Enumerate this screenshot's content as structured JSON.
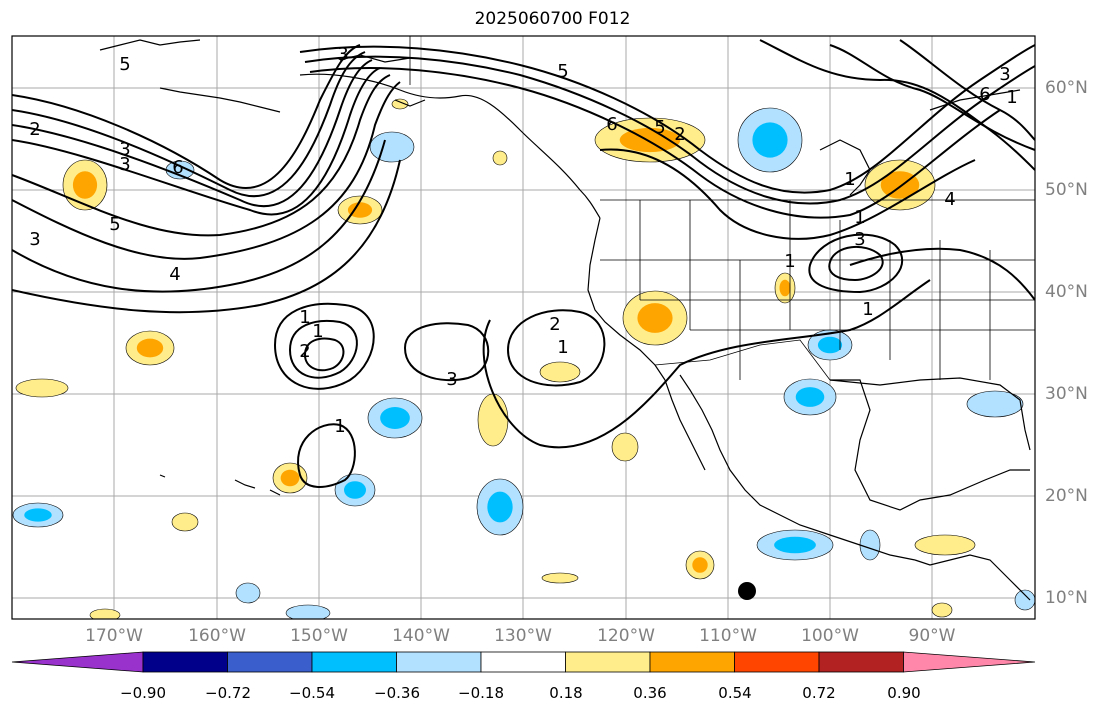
{
  "title": "2025060700 F012",
  "lon_labels": [
    "170°W",
    "160°W",
    "150°W",
    "140°W",
    "130°W",
    "120°W",
    "110°W",
    "100°W",
    "90°W"
  ],
  "lat_labels": [
    "60°N",
    "50°N",
    "40°N",
    "30°N",
    "20°N",
    "10°N"
  ],
  "colorbar": {
    "colors": [
      "#9932cc",
      "#00008b",
      "#3a5fcd",
      "#00bfff",
      "#b2e0ff",
      "#ffffff",
      "#ffec8b",
      "#ffa500",
      "#ff4500",
      "#b22222",
      "#ff88aa"
    ],
    "tick_labels": [
      "−0.90",
      "−0.72",
      "−0.54",
      "−0.36",
      "−0.18",
      "0.18",
      "0.36",
      "0.54",
      "0.72",
      "0.90"
    ]
  },
  "contour_labels": [
    "5",
    "2",
    "3",
    "3",
    "6",
    "5",
    "3",
    "4",
    "3",
    "5",
    "6",
    "1",
    "1",
    "3",
    "1",
    "1",
    "1",
    "1",
    "2",
    "3",
    "1",
    "2",
    "1",
    "2",
    "3",
    "1",
    "6",
    "5",
    "4"
  ]
}
